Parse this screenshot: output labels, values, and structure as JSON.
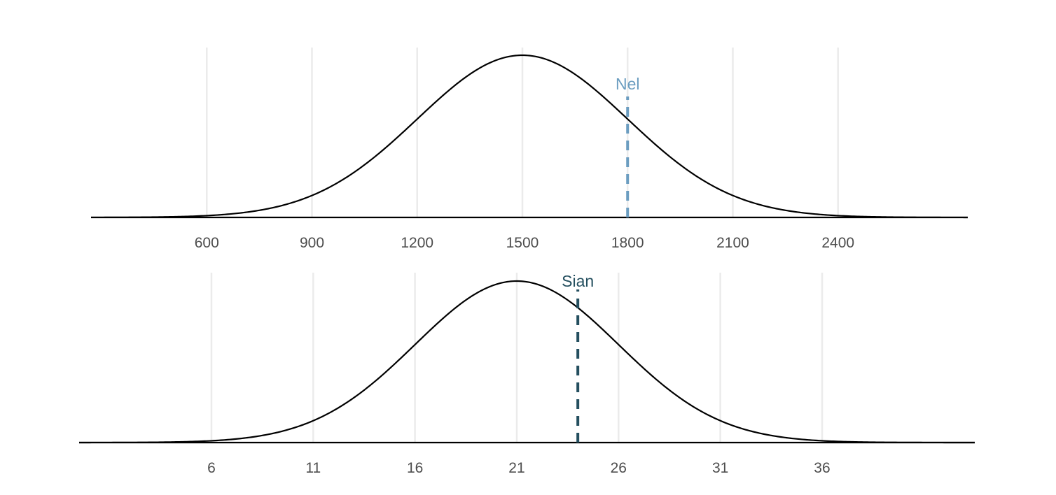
{
  "chart_data": [
    {
      "type": "line",
      "subtype": "normal-density",
      "title": "",
      "xlabel": "",
      "ylabel": "",
      "mean": 1500,
      "sd": 300,
      "xlim": [
        270,
        2770
      ],
      "grid": "vertical",
      "ticks": [
        600,
        900,
        1200,
        1500,
        1800,
        2100,
        2400
      ],
      "tick_labels": [
        "600",
        "900",
        "1200",
        "1500",
        "1800",
        "2100",
        "2400"
      ],
      "marker": {
        "label": "Nel",
        "x": 1800,
        "color": "#6b9dc0",
        "style": "dashed"
      }
    },
    {
      "type": "line",
      "subtype": "normal-density",
      "title": "",
      "xlabel": "",
      "ylabel": "",
      "mean": 21,
      "sd": 5,
      "xlim": [
        -0.5,
        43.5
      ],
      "grid": "vertical",
      "ticks": [
        6,
        11,
        16,
        21,
        26,
        31,
        36
      ],
      "tick_labels": [
        "6",
        "11",
        "16",
        "21",
        "26",
        "31",
        "36"
      ],
      "marker": {
        "label": "Sian",
        "x": 24,
        "color": "#244f5f",
        "style": "dashed"
      }
    }
  ]
}
